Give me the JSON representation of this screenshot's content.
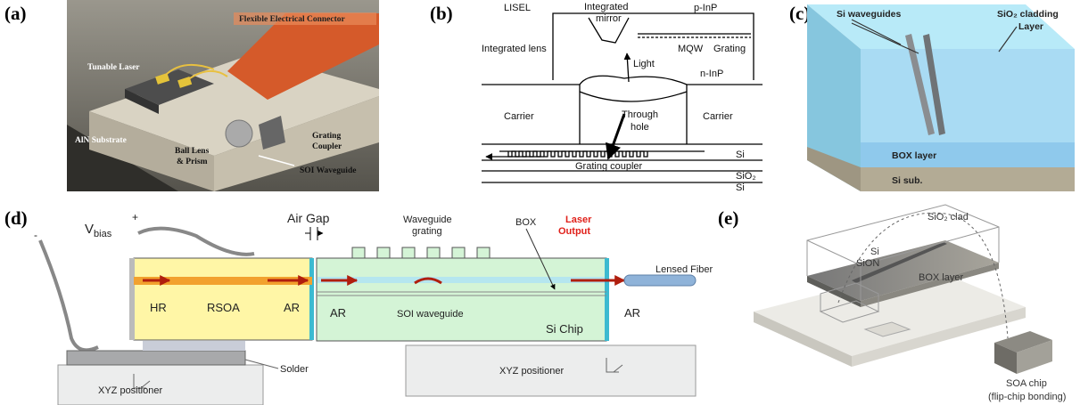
{
  "panels": {
    "a": {
      "label": "(a)",
      "connector": "Flexible Electrical Connector",
      "laser": "Tunable Laser",
      "substrate": "AlN Substrate",
      "ball_lens": [
        "Ball Lens",
        "& Prism"
      ],
      "grating_coupler": [
        "Grating",
        "Coupler"
      ],
      "waveguide": "SOI Waveguide"
    },
    "b": {
      "label": "(b)",
      "lisel": "LISEL",
      "mirror": [
        "Integrated",
        "mirror"
      ],
      "p_inp": "p-InP",
      "lens": "Integrated lens",
      "mqw": "MQW",
      "grating": "Grating",
      "light": "Light",
      "n_inp": "n-InP",
      "carrier_left": "Carrier",
      "hole": [
        "Through",
        "hole"
      ],
      "carrier_right": "Carrier",
      "si_top": "Si",
      "sio2": "SiO₂",
      "si_bottom": "Si",
      "coupler": "Grating coupler"
    },
    "c": {
      "label": "(c)",
      "waveguides": "Si waveguides",
      "cladding": [
        "SiO₂ cladding",
        "Layer"
      ],
      "box": "BOX layer",
      "substrate": "Si sub."
    },
    "d": {
      "label": "(d)",
      "minus": "-",
      "plus": "+",
      "vbias": [
        "V",
        "bias"
      ],
      "air_gap": "Air Gap",
      "wg_grating": [
        "Waveguide",
        "grating"
      ],
      "box": "BOX",
      "output": [
        "Laser",
        "Output"
      ],
      "fiber": "Lensed Fiber",
      "hr": "HR",
      "rsoa": "RSOA",
      "ar_rsoa": "AR",
      "ar_soi": "AR",
      "soi": "SOI waveguide",
      "si_chip": "Si Chip",
      "ar_out": "AR",
      "solder": "Solder",
      "positioner_left": "XYZ positioner",
      "positioner_right": "XYZ positioner"
    },
    "e": {
      "label": "(e)",
      "clad": "SiO₂ clad",
      "si": "Si",
      "sion": "SiON",
      "box": "BOX layer",
      "soa": [
        "SOA chip",
        "(flip-chip bonding)"
      ]
    }
  }
}
